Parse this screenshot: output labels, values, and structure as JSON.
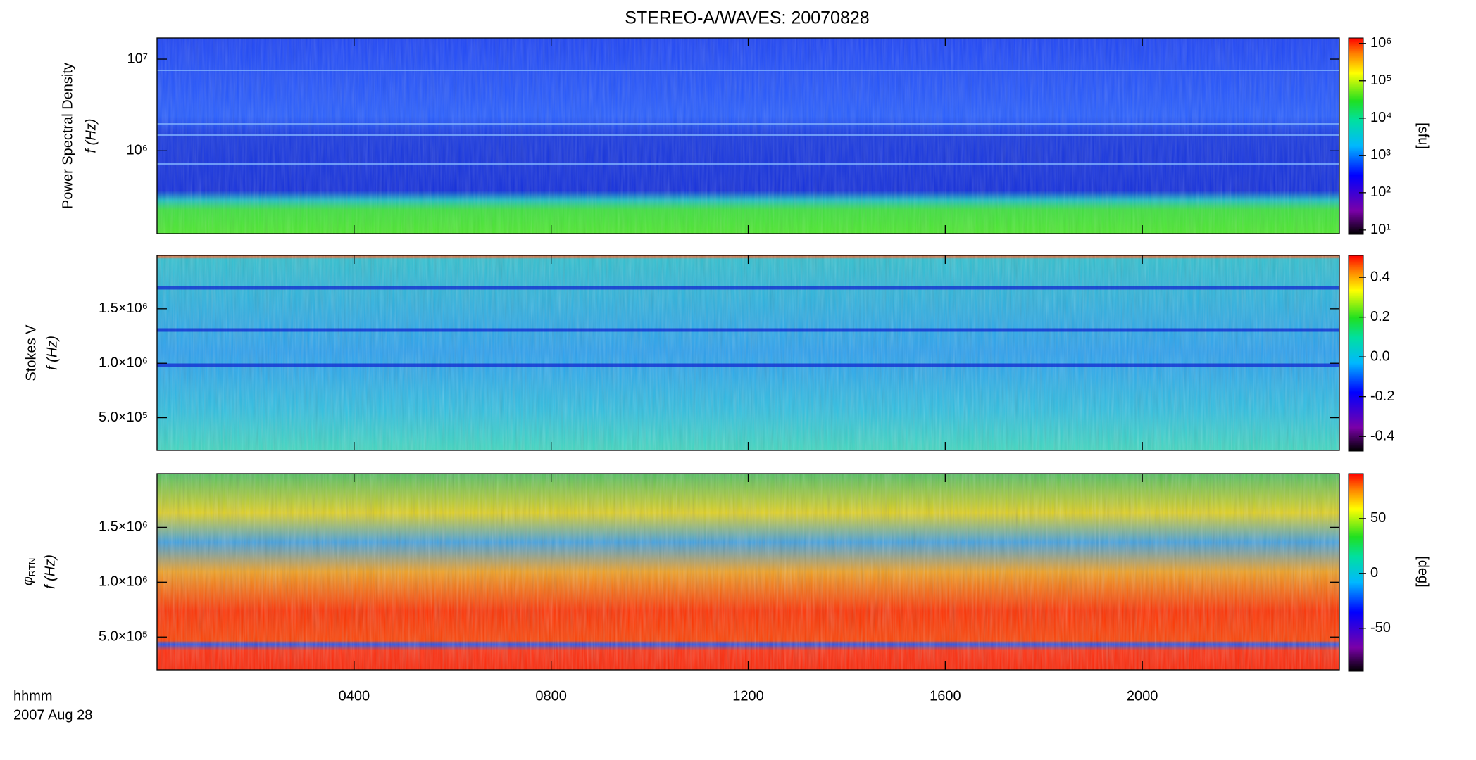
{
  "chart_data": [
    {
      "type": "spectrogram",
      "title": "STEREO-A/WAVES: 20070828",
      "ylabel": "Power Spectral Density",
      "ylabel_unit": "f (Hz)",
      "yscale": "log",
      "ylim": [
        125000,
        17000000
      ],
      "yticks": [
        {
          "value": 1000000,
          "label": "10⁶"
        },
        {
          "value": 10000000,
          "label": "10⁷"
        }
      ],
      "colormap": "rainbow",
      "colorbar": {
        "label": "[sfu]",
        "scale": "log",
        "lim": [
          8,
          1400000
        ],
        "ticks": [
          {
            "value": 10,
            "label": "10¹"
          },
          {
            "value": 100,
            "label": "10²"
          },
          {
            "value": 1000,
            "label": "10³"
          },
          {
            "value": 10000,
            "label": "10⁴"
          },
          {
            "value": 100000,
            "label": "10⁵"
          },
          {
            "value": 1000000,
            "label": "10⁶"
          }
        ]
      }
    },
    {
      "type": "spectrogram",
      "ylabel": "Stokes V",
      "ylabel_unit": "f (Hz)",
      "yscale": "linear",
      "ylim": [
        200000,
        1990000
      ],
      "yticks": [
        {
          "value": 500000,
          "label": "5.0×10⁵"
        },
        {
          "value": 1000000,
          "label": "1.0×10⁶"
        },
        {
          "value": 1500000,
          "label": "1.5×10⁶"
        }
      ],
      "colormap": "rainbow",
      "colorbar": {
        "scale": "linear",
        "lim": [
          -0.47,
          0.51
        ],
        "ticks": [
          {
            "value": -0.4,
            "label": "-0.4"
          },
          {
            "value": -0.2,
            "label": "-0.2"
          },
          {
            "value": 0,
            "label": "0.0"
          },
          {
            "value": 0.2,
            "label": "0.2"
          },
          {
            "value": 0.4,
            "label": "0.4"
          }
        ]
      }
    },
    {
      "type": "spectrogram",
      "ylabel_symbol": "φ",
      "ylabel_subscript": "RTN",
      "ylabel_unit": "f (Hz)",
      "yscale": "linear",
      "ylim": [
        200000,
        1990000
      ],
      "yticks": [
        {
          "value": 500000,
          "label": "5.0×10⁵"
        },
        {
          "value": 1000000,
          "label": "1.0×10⁶"
        },
        {
          "value": 1500000,
          "label": "1.5×10⁶"
        }
      ],
      "colormap": "rainbow",
      "colorbar": {
        "label": "[deg]",
        "scale": "linear",
        "lim": [
          -88,
          91
        ],
        "ticks": [
          -50,
          0,
          50
        ]
      },
      "xlim": [
        0,
        24
      ],
      "xticks": [
        {
          "value": 4,
          "label": "0400"
        },
        {
          "value": 8,
          "label": "0800"
        },
        {
          "value": 12,
          "label": "1200"
        },
        {
          "value": 16,
          "label": "1600"
        },
        {
          "value": 20,
          "label": "2000"
        }
      ],
      "xlabel": "hhmm",
      "date": "2007 Aug 28"
    }
  ]
}
